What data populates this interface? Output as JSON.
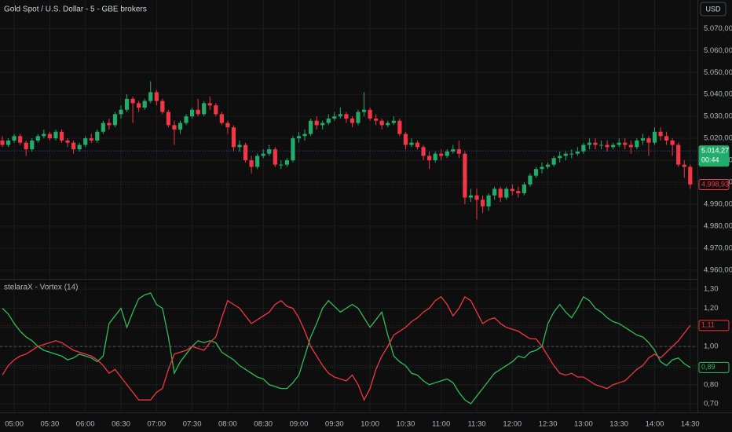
{
  "header": {
    "title": "Gold Spot / U.S. Dollar - 5 - GBE brokers",
    "currency": "USD"
  },
  "chart_data": [
    {
      "type": "candlestick",
      "up_color": "#22ab6a",
      "down_color": "#f23645",
      "grid": true,
      "categories": [
        null,
        null,
        "05:00",
        null,
        null,
        null,
        null,
        null,
        "05:30",
        null,
        null,
        null,
        null,
        null,
        "06:00",
        null,
        null,
        null,
        null,
        null,
        "06:30",
        null,
        null,
        null,
        null,
        null,
        "07:00",
        null,
        null,
        null,
        null,
        null,
        "07:30",
        null,
        null,
        null,
        null,
        null,
        "08:00",
        null,
        null,
        null,
        null,
        null,
        "08:30",
        null,
        null,
        null,
        null,
        null,
        "09:00",
        null,
        null,
        null,
        null,
        null,
        "09:30",
        null,
        null,
        null,
        null,
        null,
        "10:00",
        null,
        null,
        null,
        null,
        null,
        "10:30",
        null,
        null,
        null,
        null,
        null,
        "11:00",
        null,
        null,
        null,
        null,
        null,
        "11:30",
        null,
        null,
        null,
        null,
        null,
        "12:00",
        null,
        null,
        null,
        null,
        null,
        "12:30",
        null,
        null,
        null,
        null,
        null,
        "13:00",
        null,
        null,
        null,
        null,
        null,
        "13:30",
        null,
        null,
        null,
        null,
        null,
        "14:00",
        null,
        null,
        null,
        null,
        null,
        "14:30"
      ],
      "open": [
        5019,
        5017,
        5019,
        5021,
        5018,
        5015,
        5019,
        5021,
        5022,
        5020,
        5023,
        5019,
        5018,
        5015,
        5017,
        5020,
        5019,
        5023,
        5027,
        5026,
        5031,
        5033,
        5038,
        5036,
        5034,
        5037,
        5041,
        5037,
        5032,
        5026,
        5024,
        5027,
        5030,
        5033,
        5031,
        5036,
        5035,
        5031,
        5027,
        5025,
        5016,
        5017,
        5010,
        5007,
        5012,
        5013,
        5015,
        5008,
        5008,
        5010,
        5020,
        5021,
        5022,
        5028,
        5026,
        5027,
        5029,
        5030,
        5031,
        5029,
        5027,
        5032,
        5033,
        5029,
        5028,
        5026,
        5027,
        5028,
        5022,
        5017,
        5018,
        5016,
        5012,
        5010,
        5013,
        5012,
        5014,
        5015,
        5013,
        4993,
        4994,
        4992,
        4989,
        4994,
        4997,
        4993,
        4997,
        4996,
        4995,
        4999,
        5003,
        5006,
        5007,
        5008,
        5011,
        5012,
        5013,
        5013,
        5014,
        5017,
        5018,
        5017,
        5017,
        5016,
        5017,
        5018,
        5017,
        5016,
        5019,
        5020,
        5018,
        5023,
        5021,
        5019,
        5017,
        5008,
        5007
      ],
      "high": [
        5021,
        5020,
        5022,
        5022,
        5019,
        5020,
        5022,
        5024,
        5023,
        5024,
        5024,
        5020,
        5019,
        5018,
        5021,
        5022,
        5024,
        5028,
        5029,
        5032,
        5035,
        5040,
        5039,
        5037,
        5038,
        5046,
        5042,
        5038,
        5033,
        5028,
        5028,
        5031,
        5034,
        5038,
        5037,
        5039,
        5036,
        5032,
        5028,
        5026,
        5019,
        5018,
        5012,
        5013,
        5015,
        5017,
        5016,
        5010,
        5011,
        5021,
        5023,
        5024,
        5029,
        5030,
        5028,
        5031,
        5032,
        5034,
        5032,
        5030,
        5033,
        5041,
        5034,
        5031,
        5029,
        5028,
        5030,
        5029,
        5023,
        5020,
        5019,
        5017,
        5014,
        5014,
        5015,
        5015,
        5017,
        5019,
        5014,
        4997,
        4997,
        4994,
        4995,
        4998,
        4998,
        4998,
        4999,
        4998,
        5000,
        5004,
        5007,
        5009,
        5009,
        5012,
        5014,
        5014,
        5015,
        5016,
        5018,
        5020,
        5020,
        5019,
        5019,
        5018,
        5020,
        5020,
        5019,
        5020,
        5022,
        5021,
        5025,
        5025,
        5023,
        5020,
        5018,
        5010,
        5008
      ],
      "low": [
        5016,
        5016,
        5018,
        5017,
        5012,
        5014,
        5018,
        5020,
        5019,
        5019,
        5018,
        5016,
        5013,
        5014,
        5016,
        5018,
        5018,
        5022,
        5024,
        5025,
        5029,
        5032,
        5027,
        5032,
        5033,
        5036,
        5035,
        5031,
        5025,
        5017,
        5022,
        5026,
        5029,
        5030,
        5030,
        5033,
        5030,
        5026,
        5022,
        5014,
        5014,
        5009,
        5004,
        5006,
        5011,
        5012,
        5007,
        5006,
        5007,
        5009,
        5018,
        5019,
        5021,
        5024,
        5024,
        5026,
        5028,
        5029,
        5027,
        5025,
        5026,
        5030,
        5028,
        5026,
        5024,
        5025,
        5026,
        5021,
        5015,
        5016,
        5015,
        5010,
        5006,
        5009,
        5010,
        5011,
        5013,
        5011,
        4990,
        4991,
        4983,
        4986,
        4987,
        4992,
        4991,
        4992,
        4994,
        4993,
        4994,
        4998,
        5002,
        5004,
        5006,
        5007,
        5009,
        5010,
        5011,
        5012,
        5013,
        5015,
        5015,
        5015,
        5014,
        5015,
        5016,
        5015,
        5013,
        5015,
        5017,
        5012,
        5017,
        5019,
        5017,
        5012,
        5007,
        5002,
        4997
      ],
      "close": [
        5017,
        5019,
        5021,
        5018,
        5015,
        5019,
        5021,
        5022,
        5020,
        5023,
        5019,
        5018,
        5015,
        5017,
        5020,
        5019,
        5023,
        5027,
        5026,
        5031,
        5033,
        5038,
        5036,
        5034,
        5037,
        5041,
        5037,
        5032,
        5026,
        5024,
        5027,
        5030,
        5033,
        5031,
        5036,
        5035,
        5031,
        5027,
        5025,
        5016,
        5017,
        5010,
        5007,
        5012,
        5013,
        5015,
        5008,
        5008,
        5010,
        5020,
        5021,
        5022,
        5028,
        5026,
        5027,
        5029,
        5030,
        5031,
        5029,
        5027,
        5032,
        5033,
        5029,
        5028,
        5026,
        5027,
        5028,
        5022,
        5017,
        5018,
        5016,
        5012,
        5010,
        5013,
        5012,
        5014,
        5015,
        5013,
        4993,
        4994,
        4992,
        4989,
        4994,
        4997,
        4993,
        4997,
        4996,
        4995,
        4999,
        5003,
        5006,
        5007,
        5008,
        5011,
        5012,
        5013,
        5013,
        5014,
        5017,
        5018,
        5017,
        5017,
        5016,
        5017,
        5018,
        5017,
        5016,
        5019,
        5020,
        5018,
        5023,
        5021,
        5019,
        5017,
        5008,
        5007,
        4999
      ],
      "ylim": [
        4956,
        5083
      ],
      "yticks": [
        {
          "value": 5070,
          "label": "5.070,00"
        },
        {
          "value": 5060,
          "label": "5.060,00"
        },
        {
          "value": 5050,
          "label": "5.050,00"
        },
        {
          "value": 5040,
          "label": "5.040,00"
        },
        {
          "value": 5030,
          "label": "5.030,00"
        },
        {
          "value": 5020,
          "label": "5.020,00"
        },
        {
          "value": 5010,
          "label": "5.010,00"
        },
        {
          "value": 5000,
          "label": "5.000,00"
        },
        {
          "value": 4990,
          "label": "4.990,00"
        },
        {
          "value": 4980,
          "label": "4.980,00"
        },
        {
          "value": 4970,
          "label": "4.970,00"
        },
        {
          "value": 4960,
          "label": "4.960,00"
        }
      ],
      "price_labels": [
        {
          "value": 5014.27,
          "label": "5.014,27",
          "countdown": "00:44",
          "color": "#22ab6a",
          "filled": true
        },
        {
          "value": 4998.93,
          "label": "4.998,93",
          "color": "#f23645",
          "filled": false
        }
      ]
    },
    {
      "type": "line",
      "title": "stelaraX - Vortex (14)",
      "grid": true,
      "hline": 1,
      "series": [
        {
          "name": "VI+",
          "color": "#2ebd5a",
          "values": [
            1.2,
            1.17,
            1.12,
            1.08,
            1.05,
            1.03,
            1.0,
            0.98,
            0.97,
            0.96,
            0.95,
            0.93,
            0.94,
            0.96,
            0.95,
            0.94,
            0.92,
            0.95,
            1.12,
            1.16,
            1.2,
            1.1,
            1.18,
            1.25,
            1.27,
            1.28,
            1.22,
            1.2,
            1.05,
            0.86,
            0.92,
            0.96,
            1.0,
            1.03,
            1.02,
            1.03,
            1.02,
            0.97,
            0.95,
            0.93,
            0.9,
            0.88,
            0.86,
            0.84,
            0.83,
            0.8,
            0.79,
            0.78,
            0.78,
            0.81,
            0.85,
            0.95,
            1.05,
            1.12,
            1.2,
            1.24,
            1.21,
            1.18,
            1.2,
            1.22,
            1.2,
            1.15,
            1.1,
            1.14,
            1.18,
            1.06,
            0.95,
            0.92,
            0.9,
            0.86,
            0.85,
            0.82,
            0.8,
            0.81,
            0.82,
            0.83,
            0.81,
            0.76,
            0.72,
            0.7,
            0.74,
            0.78,
            0.82,
            0.86,
            0.88,
            0.9,
            0.92,
            0.95,
            0.94,
            0.97,
            0.98,
            1.0,
            1.12,
            1.18,
            1.22,
            1.18,
            1.15,
            1.2,
            1.26,
            1.24,
            1.2,
            1.18,
            1.15,
            1.13,
            1.12,
            1.1,
            1.08,
            1.06,
            1.05,
            1.02,
            0.98,
            0.92,
            0.9,
            0.93,
            0.94,
            0.91,
            0.89
          ]
        },
        {
          "name": "VI-",
          "color": "#f23645",
          "values": [
            0.85,
            0.9,
            0.93,
            0.95,
            0.96,
            0.98,
            1.0,
            1.01,
            1.02,
            1.03,
            1.02,
            1.0,
            0.98,
            0.97,
            0.96,
            0.95,
            0.93,
            0.9,
            0.86,
            0.88,
            0.84,
            0.8,
            0.76,
            0.72,
            0.72,
            0.72,
            0.76,
            0.78,
            0.88,
            0.96,
            0.97,
            0.98,
            1.0,
            0.99,
            0.98,
            1.02,
            1.05,
            1.15,
            1.24,
            1.22,
            1.2,
            1.16,
            1.12,
            1.14,
            1.16,
            1.18,
            1.22,
            1.24,
            1.21,
            1.2,
            1.15,
            1.08,
            1.0,
            0.95,
            0.9,
            0.86,
            0.84,
            0.83,
            0.82,
            0.85,
            0.8,
            0.72,
            0.78,
            0.88,
            0.95,
            1.0,
            1.06,
            1.08,
            1.1,
            1.13,
            1.15,
            1.18,
            1.2,
            1.24,
            1.26,
            1.22,
            1.16,
            1.2,
            1.26,
            1.24,
            1.18,
            1.12,
            1.14,
            1.15,
            1.12,
            1.1,
            1.09,
            1.08,
            1.06,
            1.04,
            1.04,
            1.0,
            0.95,
            0.9,
            0.86,
            0.85,
            0.86,
            0.84,
            0.84,
            0.82,
            0.8,
            0.79,
            0.78,
            0.8,
            0.81,
            0.82,
            0.85,
            0.88,
            0.9,
            0.94,
            0.96,
            0.94,
            0.97,
            1.0,
            1.03,
            1.07,
            1.11
          ]
        }
      ],
      "ylim": [
        0.655,
        1.35
      ],
      "yticks": [
        {
          "value": 1.3,
          "label": "1,30"
        },
        {
          "value": 1.2,
          "label": "1,20"
        },
        {
          "value": 1.1,
          "label": "1,10"
        },
        {
          "value": 1.0,
          "label": "1,00"
        },
        {
          "value": 0.9,
          "label": "0,90"
        },
        {
          "value": 0.8,
          "label": "0,80"
        },
        {
          "value": 0.7,
          "label": "0,70"
        }
      ],
      "price_labels": [
        {
          "value": 1.11,
          "label": "1,11",
          "color": "#f23645",
          "filled": false
        },
        {
          "value": 0.89,
          "label": "0,89",
          "color": "#2ebd5a",
          "filled": false
        }
      ]
    }
  ]
}
